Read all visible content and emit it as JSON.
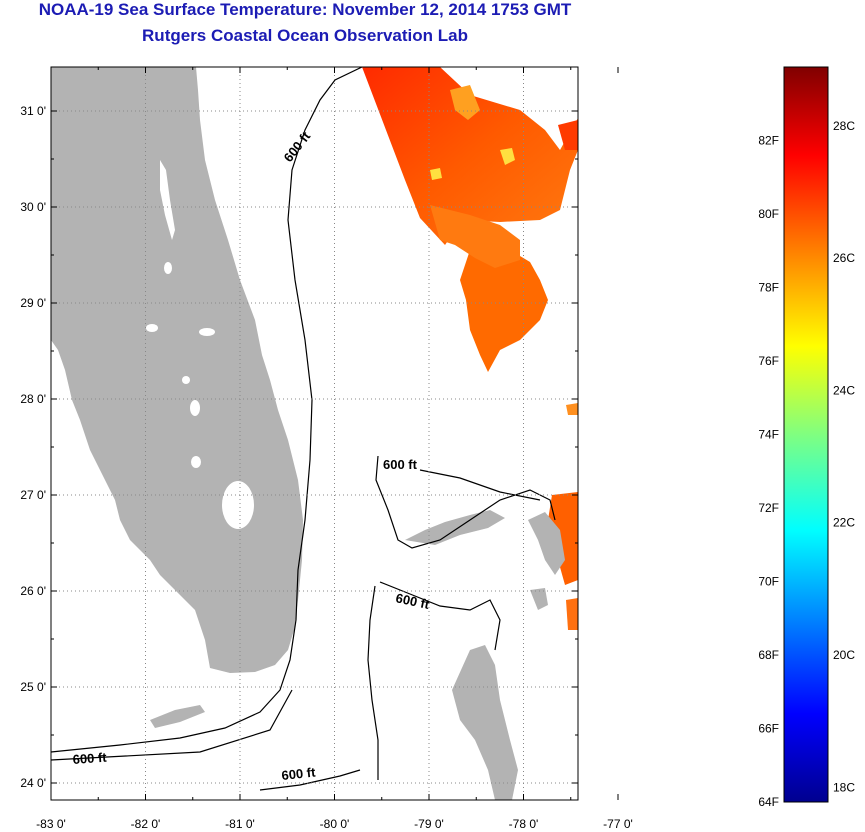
{
  "title": {
    "line1": "NOAA-19 Sea Surface Temperature:  November 12, 2014 1753 GMT",
    "line2": "Rutgers Coastal Ocean Observation Lab"
  },
  "map": {
    "lat_ticks": [
      {
        "value": 31,
        "label": "31 0'"
      },
      {
        "value": 30,
        "label": "30 0'"
      },
      {
        "value": 29,
        "label": "29 0'"
      },
      {
        "value": 28,
        "label": "28 0'"
      },
      {
        "value": 27,
        "label": "27 0'"
      },
      {
        "value": 26,
        "label": "26 0'"
      },
      {
        "value": 25,
        "label": "25 0'"
      },
      {
        "value": 24,
        "label": "24 0'"
      }
    ],
    "lon_ticks": [
      {
        "value": -83,
        "label": "-83 0'"
      },
      {
        "value": -82,
        "label": "-82 0'"
      },
      {
        "value": -81,
        "label": "-81 0'"
      },
      {
        "value": -80,
        "label": "-80 0'"
      },
      {
        "value": -79,
        "label": "-79 0'"
      },
      {
        "value": -78,
        "label": "-78 0'"
      },
      {
        "value": -77,
        "label": "-77 0'"
      }
    ],
    "contour_label": "600 ft",
    "colors": {
      "land": "#b3b3b3",
      "water": "#ffffff",
      "contour": "#000000",
      "grid": "#888888"
    }
  },
  "colorbar": {
    "fahrenheit_labels": [
      "82F",
      "80F",
      "78F",
      "76F",
      "74F",
      "72F",
      "70F",
      "68F",
      "66F",
      "64F"
    ],
    "celsius_labels": [
      "28C",
      "26C",
      "24C",
      "22C",
      "20C",
      "18C"
    ],
    "colors": {
      "low": "#00008f",
      "blue": "#0000ff",
      "cyan": "#00ffff",
      "green": "#80ff80",
      "yellow": "#ffff00",
      "orange": "#ff8000",
      "red": "#ff0000",
      "high": "#800000"
    }
  }
}
